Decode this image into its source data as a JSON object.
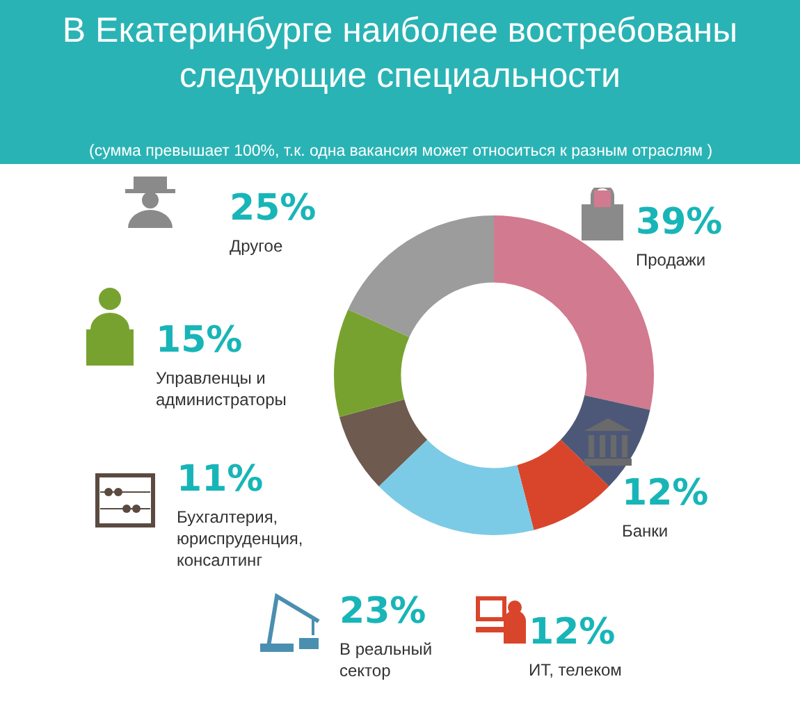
{
  "chart_data": {
    "type": "donut",
    "title": "В Екатеринбурге наиболее востребованы\nследующие специальности",
    "subtitle": "(сумма превышает 100%, т.к. одна вакансия может относиться к разным отраслям )",
    "categories": [
      "Продажи",
      "Банки",
      "ИТ, телеком",
      "В реальный\nсектор",
      "Бухгалтерия,\nюриспруденция,\nконсалтинг",
      "Управленцы и\nадминистраторы",
      "Другое"
    ],
    "values": [
      39,
      12,
      12,
      23,
      11,
      15,
      25
    ],
    "value_labels": [
      "39%",
      "12%",
      "12%",
      "23%",
      "11%",
      "15%",
      "25%"
    ],
    "colors": [
      "#d27a8f",
      "#4d5878",
      "#d9452b",
      "#7ccbe6",
      "#6e5a4e",
      "#78a22f",
      "#9c9c9c"
    ],
    "legend": false
  }
}
